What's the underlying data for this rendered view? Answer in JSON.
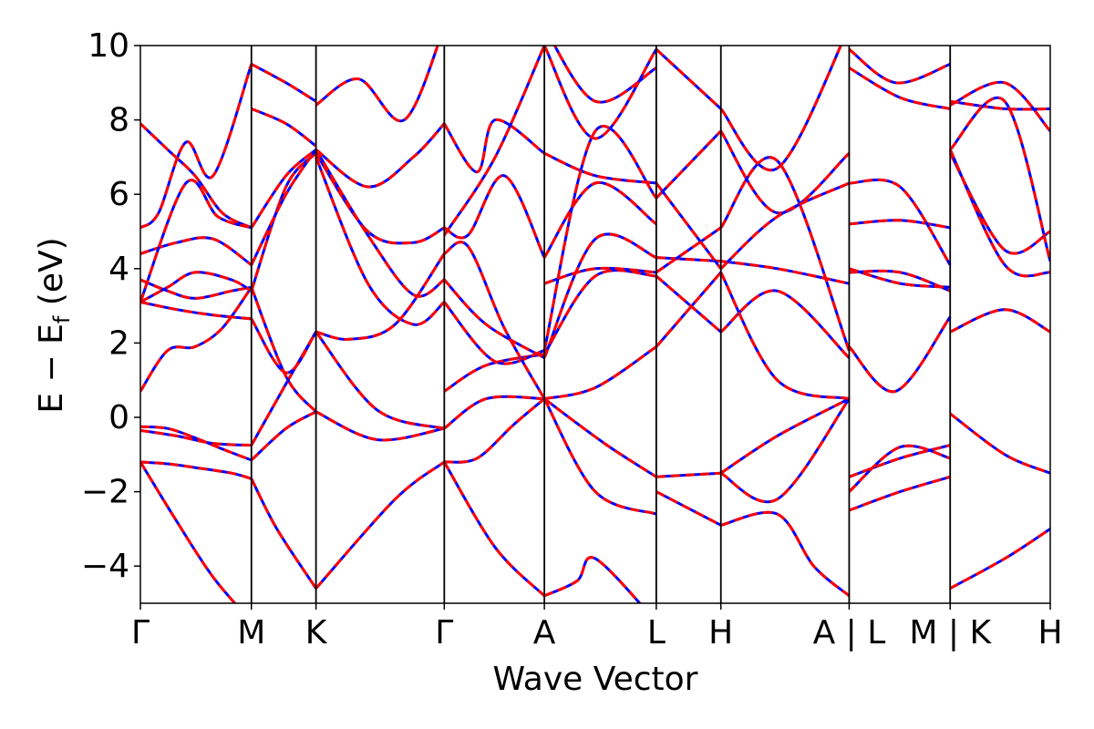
{
  "chart_data": {
    "type": "line",
    "title": "",
    "xlabel": "Wave Vector",
    "ylabel": "E − E",
    "ylabel_subscript": "f",
    "ylabel_unit": " (eV)",
    "ylim": [
      -5,
      10
    ],
    "y_ticks": [
      -4,
      -2,
      0,
      2,
      4,
      6,
      8,
      10
    ],
    "y_tick_labels": [
      "−4",
      "−2",
      "0",
      "2",
      "4",
      "6",
      "8",
      "10"
    ],
    "xlim": [
      0,
      10
    ],
    "x_ticks": [
      {
        "x": 0.0,
        "label": "Γ"
      },
      {
        "x": 1.22,
        "label": "M"
      },
      {
        "x": 1.93,
        "label": "K"
      },
      {
        "x": 3.34,
        "label": "Γ"
      },
      {
        "x": 4.44,
        "label": "A"
      },
      {
        "x": 5.67,
        "label": "L"
      },
      {
        "x": 6.38,
        "label": "H"
      },
      {
        "x": 7.79,
        "label": "A | L"
      },
      {
        "x": 8.9,
        "label": "M | K"
      },
      {
        "x": 10.0,
        "label": "H"
      }
    ],
    "grid": false,
    "colors": {
      "band_solid": "#0000ff",
      "band_dashed": "#ff0000",
      "axis": "#000000"
    },
    "series_style": [
      {
        "color": "#0000ff",
        "dash": "solid"
      },
      {
        "color": "#ff0000",
        "dash": "dashed"
      }
    ],
    "bands": [
      {
        "x": [
          0,
          0.3,
          0.6,
          1.0,
          1.22
        ],
        "y": [
          -1.2,
          -1.25,
          -1.35,
          -1.5,
          -1.65
        ]
      },
      {
        "x": [
          1.22,
          1.5,
          1.93
        ],
        "y": [
          -1.65,
          -3.0,
          -4.6
        ]
      },
      {
        "x": [
          1.93,
          2.8,
          3.34
        ],
        "y": [
          -4.6,
          -2.2,
          -1.2
        ]
      },
      {
        "x": [
          0,
          0.4,
          0.8,
          1.22
        ],
        "y": [
          -1.2,
          -2.8,
          -4.3,
          -5.5
        ]
      },
      {
        "x": [
          0,
          0.3,
          0.6,
          0.9,
          1.22
        ],
        "y": [
          -0.25,
          -0.3,
          -0.55,
          -0.85,
          -1.15
        ]
      },
      {
        "x": [
          0,
          0.4,
          0.8,
          1.22
        ],
        "y": [
          -0.35,
          -0.5,
          -0.7,
          -0.75
        ]
      },
      {
        "x": [
          1.22,
          1.6,
          1.93
        ],
        "y": [
          -1.15,
          -0.3,
          0.15
        ]
      },
      {
        "x": [
          1.22,
          1.6,
          1.93
        ],
        "y": [
          -0.75,
          0.9,
          2.3
        ]
      },
      {
        "x": [
          1.93,
          2.6,
          3.34
        ],
        "y": [
          0.15,
          -0.6,
          -0.3
        ]
      },
      {
        "x": [
          1.93,
          2.6,
          3.34
        ],
        "y": [
          2.3,
          0.2,
          -0.3
        ]
      },
      {
        "x": [
          0,
          0.3,
          0.6,
          0.9,
          1.22
        ],
        "y": [
          0.7,
          1.8,
          1.9,
          2.4,
          3.5
        ]
      },
      {
        "x": [
          1.22,
          1.6,
          1.93
        ],
        "y": [
          3.5,
          1.1,
          0.15
        ]
      },
      {
        "x": [
          0,
          0.4,
          0.8,
          1.22
        ],
        "y": [
          3.1,
          2.9,
          2.75,
          2.65
        ]
      },
      {
        "x": [
          1.22,
          1.6,
          1.93
        ],
        "y": [
          2.65,
          1.2,
          2.3
        ]
      },
      {
        "x": [
          0,
          0.3,
          0.6,
          1.0,
          1.22
        ],
        "y": [
          3.7,
          3.4,
          3.2,
          3.4,
          3.5
        ]
      },
      {
        "x": [
          0,
          0.3,
          0.6,
          1.0,
          1.22
        ],
        "y": [
          3.1,
          3.5,
          3.9,
          3.7,
          3.4
        ]
      },
      {
        "x": [
          1.22,
          1.6,
          1.93
        ],
        "y": [
          3.4,
          6.2,
          7.1
        ]
      },
      {
        "x": [
          1.22,
          1.6,
          1.93
        ],
        "y": [
          4.1,
          6.0,
          7.2
        ]
      },
      {
        "x": [
          0,
          0.4,
          0.8,
          1.22
        ],
        "y": [
          4.4,
          4.7,
          4.8,
          4.1
        ]
      },
      {
        "x": [
          0,
          0.2,
          0.5,
          0.8,
          1.22
        ],
        "y": [
          5.1,
          5.5,
          7.4,
          6.5,
          9.5
        ]
      },
      {
        "x": [
          0,
          0.3,
          0.6,
          0.9,
          1.22
        ],
        "y": [
          7.9,
          7.2,
          6.5,
          5.5,
          5.1
        ]
      },
      {
        "x": [
          1.22,
          1.6,
          1.93
        ],
        "y": [
          5.1,
          6.5,
          7.2
        ]
      },
      {
        "x": [
          0,
          0.5,
          0.85,
          1.22
        ],
        "y": [
          3.1,
          6.3,
          5.4,
          5.1
        ]
      },
      {
        "x": [
          1.22,
          1.6,
          1.93
        ],
        "y": [
          8.3,
          7.9,
          7.3
        ]
      },
      {
        "x": [
          1.22,
          1.6,
          1.93
        ],
        "y": [
          9.5,
          9.0,
          8.5
        ]
      },
      {
        "x": [
          1.93,
          2.5,
          3.0,
          3.34
        ],
        "y": [
          7.2,
          6.2,
          7.0,
          7.9
        ]
      },
      {
        "x": [
          1.93,
          2.5,
          3.0,
          3.34
        ],
        "y": [
          7.1,
          5.0,
          4.7,
          5.1
        ]
      },
      {
        "x": [
          1.93,
          2.5,
          3.0,
          3.34
        ],
        "y": [
          7.0,
          3.6,
          2.5,
          3.1
        ]
      },
      {
        "x": [
          1.93,
          2.5,
          3.0,
          3.34
        ],
        "y": [
          7.2,
          4.9,
          3.3,
          3.7
        ]
      },
      {
        "x": [
          1.93,
          2.3,
          2.8,
          3.34
        ],
        "y": [
          2.3,
          2.1,
          2.5,
          4.4
        ]
      },
      {
        "x": [
          1.93,
          2.4,
          2.9,
          3.34
        ],
        "y": [
          8.4,
          9.1,
          8.0,
          10.5
        ]
      },
      {
        "x": [
          3.34,
          3.8,
          4.44
        ],
        "y": [
          -0.3,
          0.5,
          0.5
        ]
      },
      {
        "x": [
          3.34,
          3.7,
          4.1,
          4.44
        ],
        "y": [
          -1.2,
          -1.1,
          -0.2,
          0.5
        ]
      },
      {
        "x": [
          3.34,
          3.9,
          4.44
        ],
        "y": [
          -1.2,
          -3.5,
          -4.8
        ]
      },
      {
        "x": [
          3.34,
          3.8,
          4.44
        ],
        "y": [
          0.7,
          1.4,
          1.7
        ]
      },
      {
        "x": [
          3.34,
          3.9,
          4.44
        ],
        "y": [
          3.1,
          1.5,
          1.8
        ]
      },
      {
        "x": [
          3.34,
          3.8,
          4.44
        ],
        "y": [
          3.7,
          2.5,
          1.6
        ]
      },
      {
        "x": [
          3.34,
          3.6,
          4.0,
          4.44
        ],
        "y": [
          4.4,
          4.6,
          2.4,
          0.5
        ]
      },
      {
        "x": [
          3.34,
          3.6,
          4.0,
          4.44
        ],
        "y": [
          5.1,
          4.9,
          6.5,
          4.3
        ]
      },
      {
        "x": [
          3.34,
          3.7,
          3.9,
          4.44
        ],
        "y": [
          7.9,
          6.6,
          8.0,
          7.1
        ]
      },
      {
        "x": [
          3.34,
          3.9,
          4.44
        ],
        "y": [
          4.9,
          7.0,
          10.0
        ]
      },
      {
        "x": [
          4.44,
          5.0,
          5.67
        ],
        "y": [
          0.5,
          -2.0,
          -2.6
        ]
      },
      {
        "x": [
          4.44,
          5.0,
          5.67
        ],
        "y": [
          0.5,
          0.8,
          1.9
        ]
      },
      {
        "x": [
          4.44,
          5.1,
          5.67
        ],
        "y": [
          0.5,
          -0.7,
          -1.6
        ]
      },
      {
        "x": [
          4.44,
          4.8,
          5.0,
          5.67
        ],
        "y": [
          -4.8,
          -4.4,
          -3.8,
          -5.5
        ]
      },
      {
        "x": [
          4.44,
          5.0,
          5.67
        ],
        "y": [
          1.7,
          3.8,
          3.8
        ]
      },
      {
        "x": [
          4.44,
          5.0,
          5.67
        ],
        "y": [
          3.6,
          4.0,
          3.9
        ]
      },
      {
        "x": [
          4.44,
          5.0,
          5.67
        ],
        "y": [
          1.6,
          4.8,
          4.3
        ]
      },
      {
        "x": [
          4.44,
          5.0,
          5.67
        ],
        "y": [
          4.3,
          6.3,
          5.2
        ]
      },
      {
        "x": [
          4.44,
          5.0,
          5.67
        ],
        "y": [
          7.1,
          6.5,
          6.3
        ]
      },
      {
        "x": [
          4.44,
          5.0,
          5.67
        ],
        "y": [
          1.8,
          7.7,
          5.9
        ]
      },
      {
        "x": [
          4.44,
          5.0,
          5.67
        ],
        "y": [
          10.0,
          7.5,
          9.9
        ]
      },
      {
        "x": [
          4.44,
          5.0,
          5.67
        ],
        "y": [
          10.5,
          8.5,
          9.4
        ]
      },
      {
        "x": [
          5.67,
          6.38
        ],
        "y": [
          -1.6,
          -1.5
        ]
      },
      {
        "x": [
          5.67,
          6.38
        ],
        "y": [
          -2.0,
          -2.9
        ]
      },
      {
        "x": [
          5.67,
          6.38
        ],
        "y": [
          1.9,
          3.9
        ]
      },
      {
        "x": [
          5.67,
          6.38
        ],
        "y": [
          3.8,
          2.3
        ]
      },
      {
        "x": [
          5.67,
          6.38
        ],
        "y": [
          4.3,
          4.2
        ]
      },
      {
        "x": [
          5.67,
          6.38
        ],
        "y": [
          3.9,
          5.1
        ]
      },
      {
        "x": [
          5.67,
          6.38
        ],
        "y": [
          5.9,
          7.7
        ]
      },
      {
        "x": [
          5.67,
          6.38
        ],
        "y": [
          6.3,
          4.0
        ]
      },
      {
        "x": [
          5.67,
          6.38
        ],
        "y": [
          9.9,
          8.3
        ]
      },
      {
        "x": [
          6.38,
          7.0,
          7.79
        ],
        "y": [
          -1.5,
          -0.5,
          0.5
        ]
      },
      {
        "x": [
          6.38,
          7.0,
          7.4,
          7.79
        ],
        "y": [
          -2.9,
          -2.6,
          -4.0,
          -4.8
        ]
      },
      {
        "x": [
          6.38,
          7.0,
          7.79
        ],
        "y": [
          -1.5,
          -2.2,
          0.5
        ]
      },
      {
        "x": [
          6.38,
          7.0,
          7.79
        ],
        "y": [
          2.3,
          3.4,
          1.6
        ]
      },
      {
        "x": [
          6.38,
          7.0,
          7.79
        ],
        "y": [
          3.9,
          1.0,
          0.5
        ]
      },
      {
        "x": [
          6.38,
          7.0,
          7.79
        ],
        "y": [
          4.2,
          4.0,
          3.6
        ]
      },
      {
        "x": [
          6.38,
          7.0,
          7.79
        ],
        "y": [
          5.1,
          6.9,
          1.8
        ]
      },
      {
        "x": [
          6.38,
          7.0,
          7.79
        ],
        "y": [
          7.7,
          5.5,
          7.1
        ]
      },
      {
        "x": [
          6.38,
          7.0,
          7.79
        ],
        "y": [
          8.3,
          6.7,
          10.5
        ]
      },
      {
        "x": [
          6.38,
          7.0,
          7.79
        ],
        "y": [
          4.0,
          5.4,
          6.3
        ]
      },
      {
        "x": [
          7.79,
          8.35,
          8.9
        ],
        "y": [
          -1.6,
          -1.1,
          -0.75
        ]
      },
      {
        "x": [
          7.79,
          8.35,
          8.9
        ],
        "y": [
          -2.0,
          -0.8,
          -1.1
        ]
      },
      {
        "x": [
          7.79,
          8.35,
          8.9
        ],
        "y": [
          -2.5,
          -2.0,
          -1.6
        ]
      },
      {
        "x": [
          7.79,
          8.3,
          8.9
        ],
        "y": [
          1.9,
          0.7,
          2.7
        ]
      },
      {
        "x": [
          7.79,
          8.35,
          8.9
        ],
        "y": [
          3.9,
          3.9,
          3.4
        ]
      },
      {
        "x": [
          7.79,
          8.35,
          8.9
        ],
        "y": [
          4.0,
          3.6,
          3.5
        ]
      },
      {
        "x": [
          7.79,
          8.35,
          8.9
        ],
        "y": [
          5.2,
          5.3,
          5.1
        ]
      },
      {
        "x": [
          7.79,
          8.35,
          8.9
        ],
        "y": [
          6.3,
          6.2,
          4.1
        ]
      },
      {
        "x": [
          7.79,
          8.35,
          8.9
        ],
        "y": [
          9.4,
          8.6,
          8.3
        ]
      },
      {
        "x": [
          7.79,
          8.3,
          8.9
        ],
        "y": [
          9.9,
          9.0,
          9.5
        ]
      },
      {
        "x": [
          8.9,
          9.5,
          10.0
        ],
        "y": [
          0.1,
          -1.0,
          -1.5
        ]
      },
      {
        "x": [
          8.9,
          9.5,
          10.0
        ],
        "y": [
          -4.6,
          -3.8,
          -3.0
        ]
      },
      {
        "x": [
          8.9,
          9.5,
          10.0
        ],
        "y": [
          2.3,
          2.9,
          2.3
        ]
      },
      {
        "x": [
          8.9,
          9.5,
          10.0
        ],
        "y": [
          7.1,
          4.5,
          5.0
        ]
      },
      {
        "x": [
          8.9,
          9.5,
          10.0
        ],
        "y": [
          7.2,
          4.1,
          3.9
        ]
      },
      {
        "x": [
          8.9,
          9.5,
          10.0
        ],
        "y": [
          8.4,
          9.0,
          7.7
        ]
      },
      {
        "x": [
          8.9,
          9.5,
          10.0
        ],
        "y": [
          8.5,
          8.3,
          8.3
        ]
      },
      {
        "x": [
          8.9,
          9.5,
          10.0
        ],
        "y": [
          7.2,
          8.5,
          4.2
        ]
      }
    ]
  }
}
